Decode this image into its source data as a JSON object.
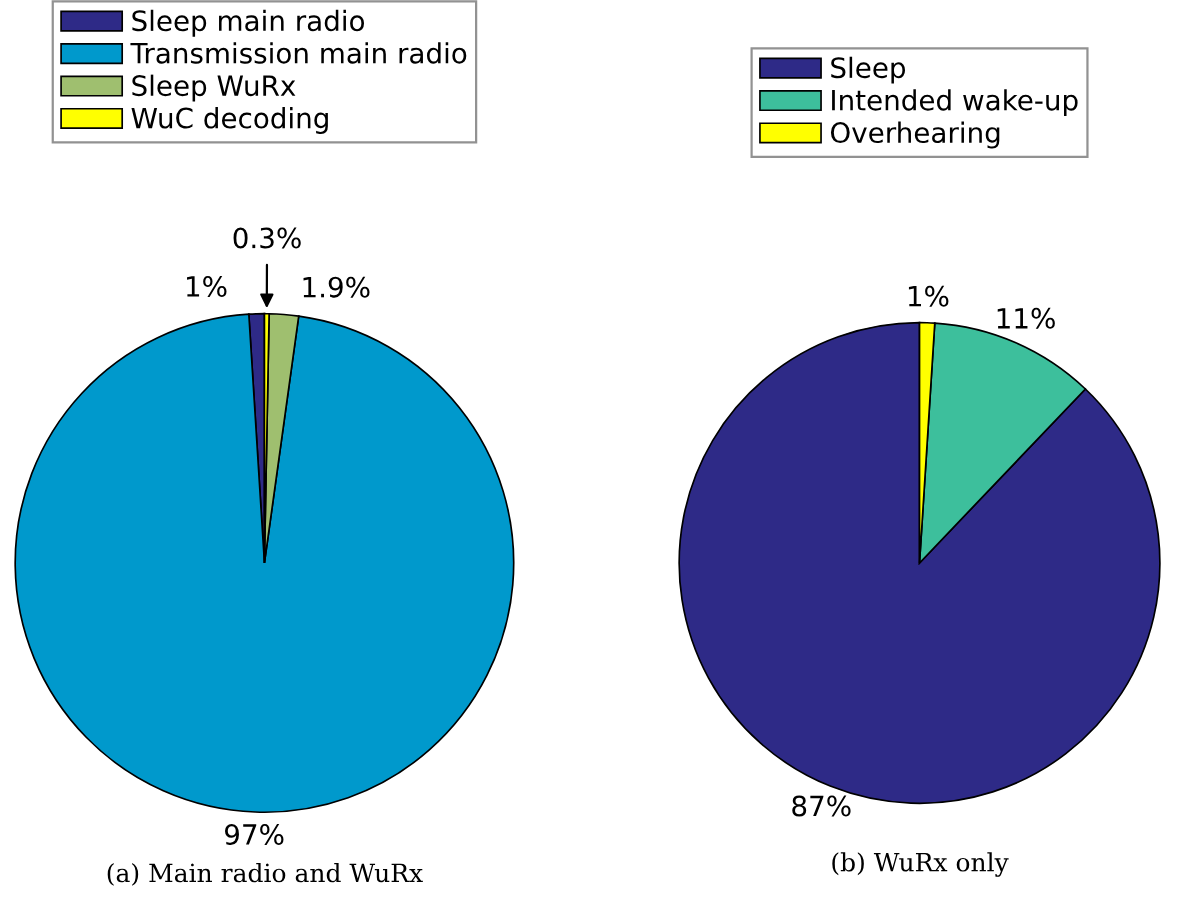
{
  "chart_data": [
    {
      "type": "pie",
      "xlabel": "(a) Main radio and WuRx",
      "categories": [
        "Sleep main radio",
        "Transmission main radio",
        "Sleep WuRx",
        "WuC decoding"
      ],
      "values": [
        1,
        97,
        1.9,
        0.3
      ],
      "colors": [
        "#2e2a87",
        "#0099cc",
        "#9fbf6f",
        "#ffff00"
      ],
      "value_labels": [
        "1%",
        "97%",
        "1.9%",
        "0.3%"
      ],
      "legend": "top"
    },
    {
      "type": "pie",
      "xlabel": "(b) WuRx only",
      "categories": [
        "Sleep",
        "Intended wake-up",
        "Overhearing"
      ],
      "values": [
        87,
        11,
        1
      ],
      "colors": [
        "#2e2a87",
        "#3dbf9c",
        "#ffff00"
      ],
      "value_labels": [
        "87%",
        "11%",
        "1%"
      ],
      "legend": "top"
    }
  ]
}
